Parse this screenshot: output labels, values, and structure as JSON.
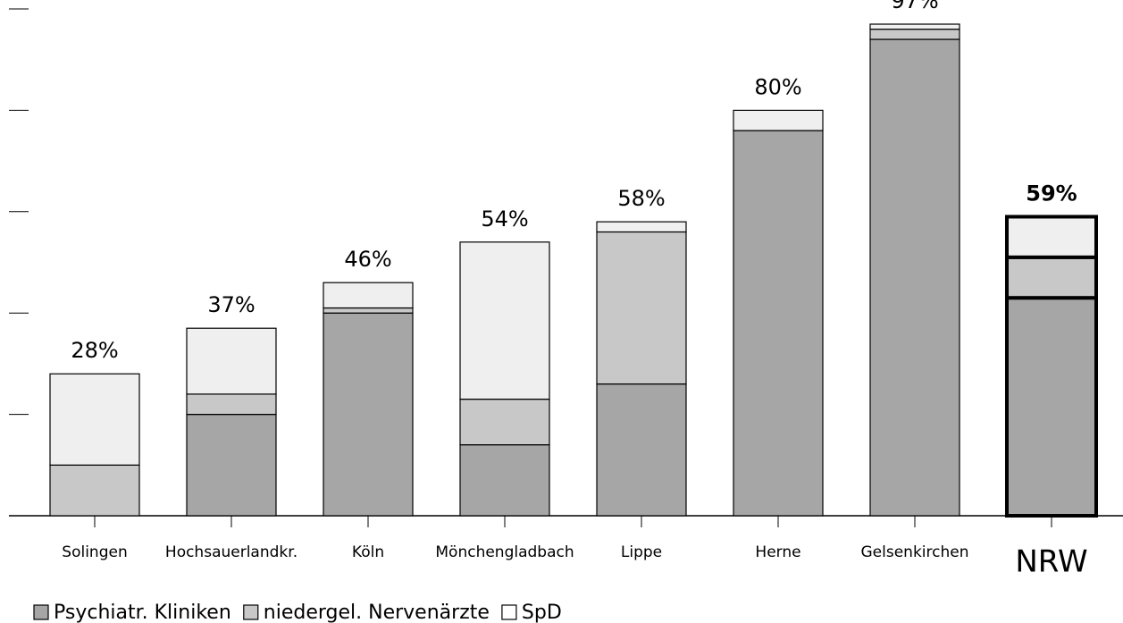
{
  "chart_data": {
    "type": "stacked_bar",
    "categories": [
      "Solingen",
      "Hochsauerlandkr.",
      "Köln",
      "Mönchengladbach",
      "Lippe",
      "Herne",
      "Gelsenkirchen",
      "NRW"
    ],
    "series": [
      {
        "name": "Psychiatr. Kliniken",
        "color": "#a6a6a6",
        "values": [
          0,
          20,
          40,
          14,
          26,
          76,
          94,
          43
        ]
      },
      {
        "name": "niedergel. Nervenärzte",
        "color": "#c8c8c8",
        "values": [
          10,
          4,
          1,
          9,
          30,
          0,
          2,
          8
        ]
      },
      {
        "name": "SpD",
        "color": "#efefef",
        "values": [
          18,
          13,
          5,
          31,
          2,
          4,
          1,
          8
        ]
      }
    ],
    "totals": [
      28,
      37,
      46,
      54,
      58,
      80,
      97,
      59
    ],
    "total_labels": [
      "28%",
      "37%",
      "46%",
      "54%",
      "58%",
      "80%",
      "97%",
      "59%"
    ],
    "ylim": [
      0,
      100
    ],
    "yticks": [
      0,
      20,
      40,
      60,
      80,
      100
    ],
    "grid": false
  }
}
